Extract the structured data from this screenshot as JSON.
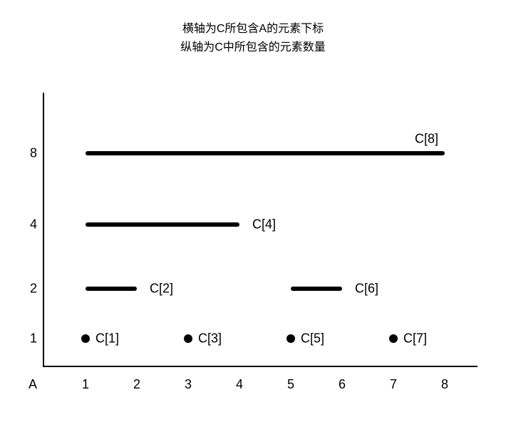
{
  "title": {
    "line1": "横轴为C所包含A的元素下标",
    "line2": "纵轴为C中所包含的元素数量",
    "fontsize": 16,
    "color": "#000000"
  },
  "chart": {
    "type": "diagram",
    "background_color": "#ffffff",
    "axis_color": "#000000",
    "axis_width": 2,
    "tick_fontsize": 18,
    "label_fontsize": 18,
    "x_origin_label": "A",
    "x_ticks": [
      1,
      2,
      3,
      4,
      5,
      6,
      7,
      8
    ],
    "y_ticks": [
      1,
      2,
      4,
      8
    ],
    "y_positions": {
      "1": 345,
      "2": 275,
      "4": 185,
      "8": 85
    },
    "x_positions": {
      "1": 60,
      "2": 132,
      "3": 204,
      "4": 276,
      "5": 348,
      "6": 420,
      "7": 492,
      "8": 564
    },
    "segment_stroke": 6,
    "segment_color": "#000000",
    "dot_radius": 6,
    "dot_color": "#000000",
    "segments": [
      {
        "label": "C[1]",
        "x_from": 1,
        "x_to": 1,
        "y": 1,
        "is_point": true,
        "label_offset_start": true
      },
      {
        "label": "C[3]",
        "x_from": 3,
        "x_to": 3,
        "y": 1,
        "is_point": true,
        "label_offset_start": true
      },
      {
        "label": "C[5]",
        "x_from": 5,
        "x_to": 5,
        "y": 1,
        "is_point": true,
        "label_offset_start": true
      },
      {
        "label": "C[7]",
        "x_from": 7,
        "x_to": 7,
        "y": 1,
        "is_point": true,
        "label_offset_start": true
      },
      {
        "label": "C[2]",
        "x_from": 1,
        "x_to": 2,
        "y": 2,
        "is_point": false,
        "label_offset_start": false
      },
      {
        "label": "C[6]",
        "x_from": 5,
        "x_to": 6,
        "y": 2,
        "is_point": false,
        "label_offset_start": false
      },
      {
        "label": "C[4]",
        "x_from": 1,
        "x_to": 4,
        "y": 4,
        "is_point": false,
        "label_offset_start": false
      },
      {
        "label": "C[8]",
        "x_from": 1,
        "x_to": 8,
        "y": 8,
        "is_point": false,
        "label_offset_start": false,
        "label_above": true
      }
    ]
  }
}
